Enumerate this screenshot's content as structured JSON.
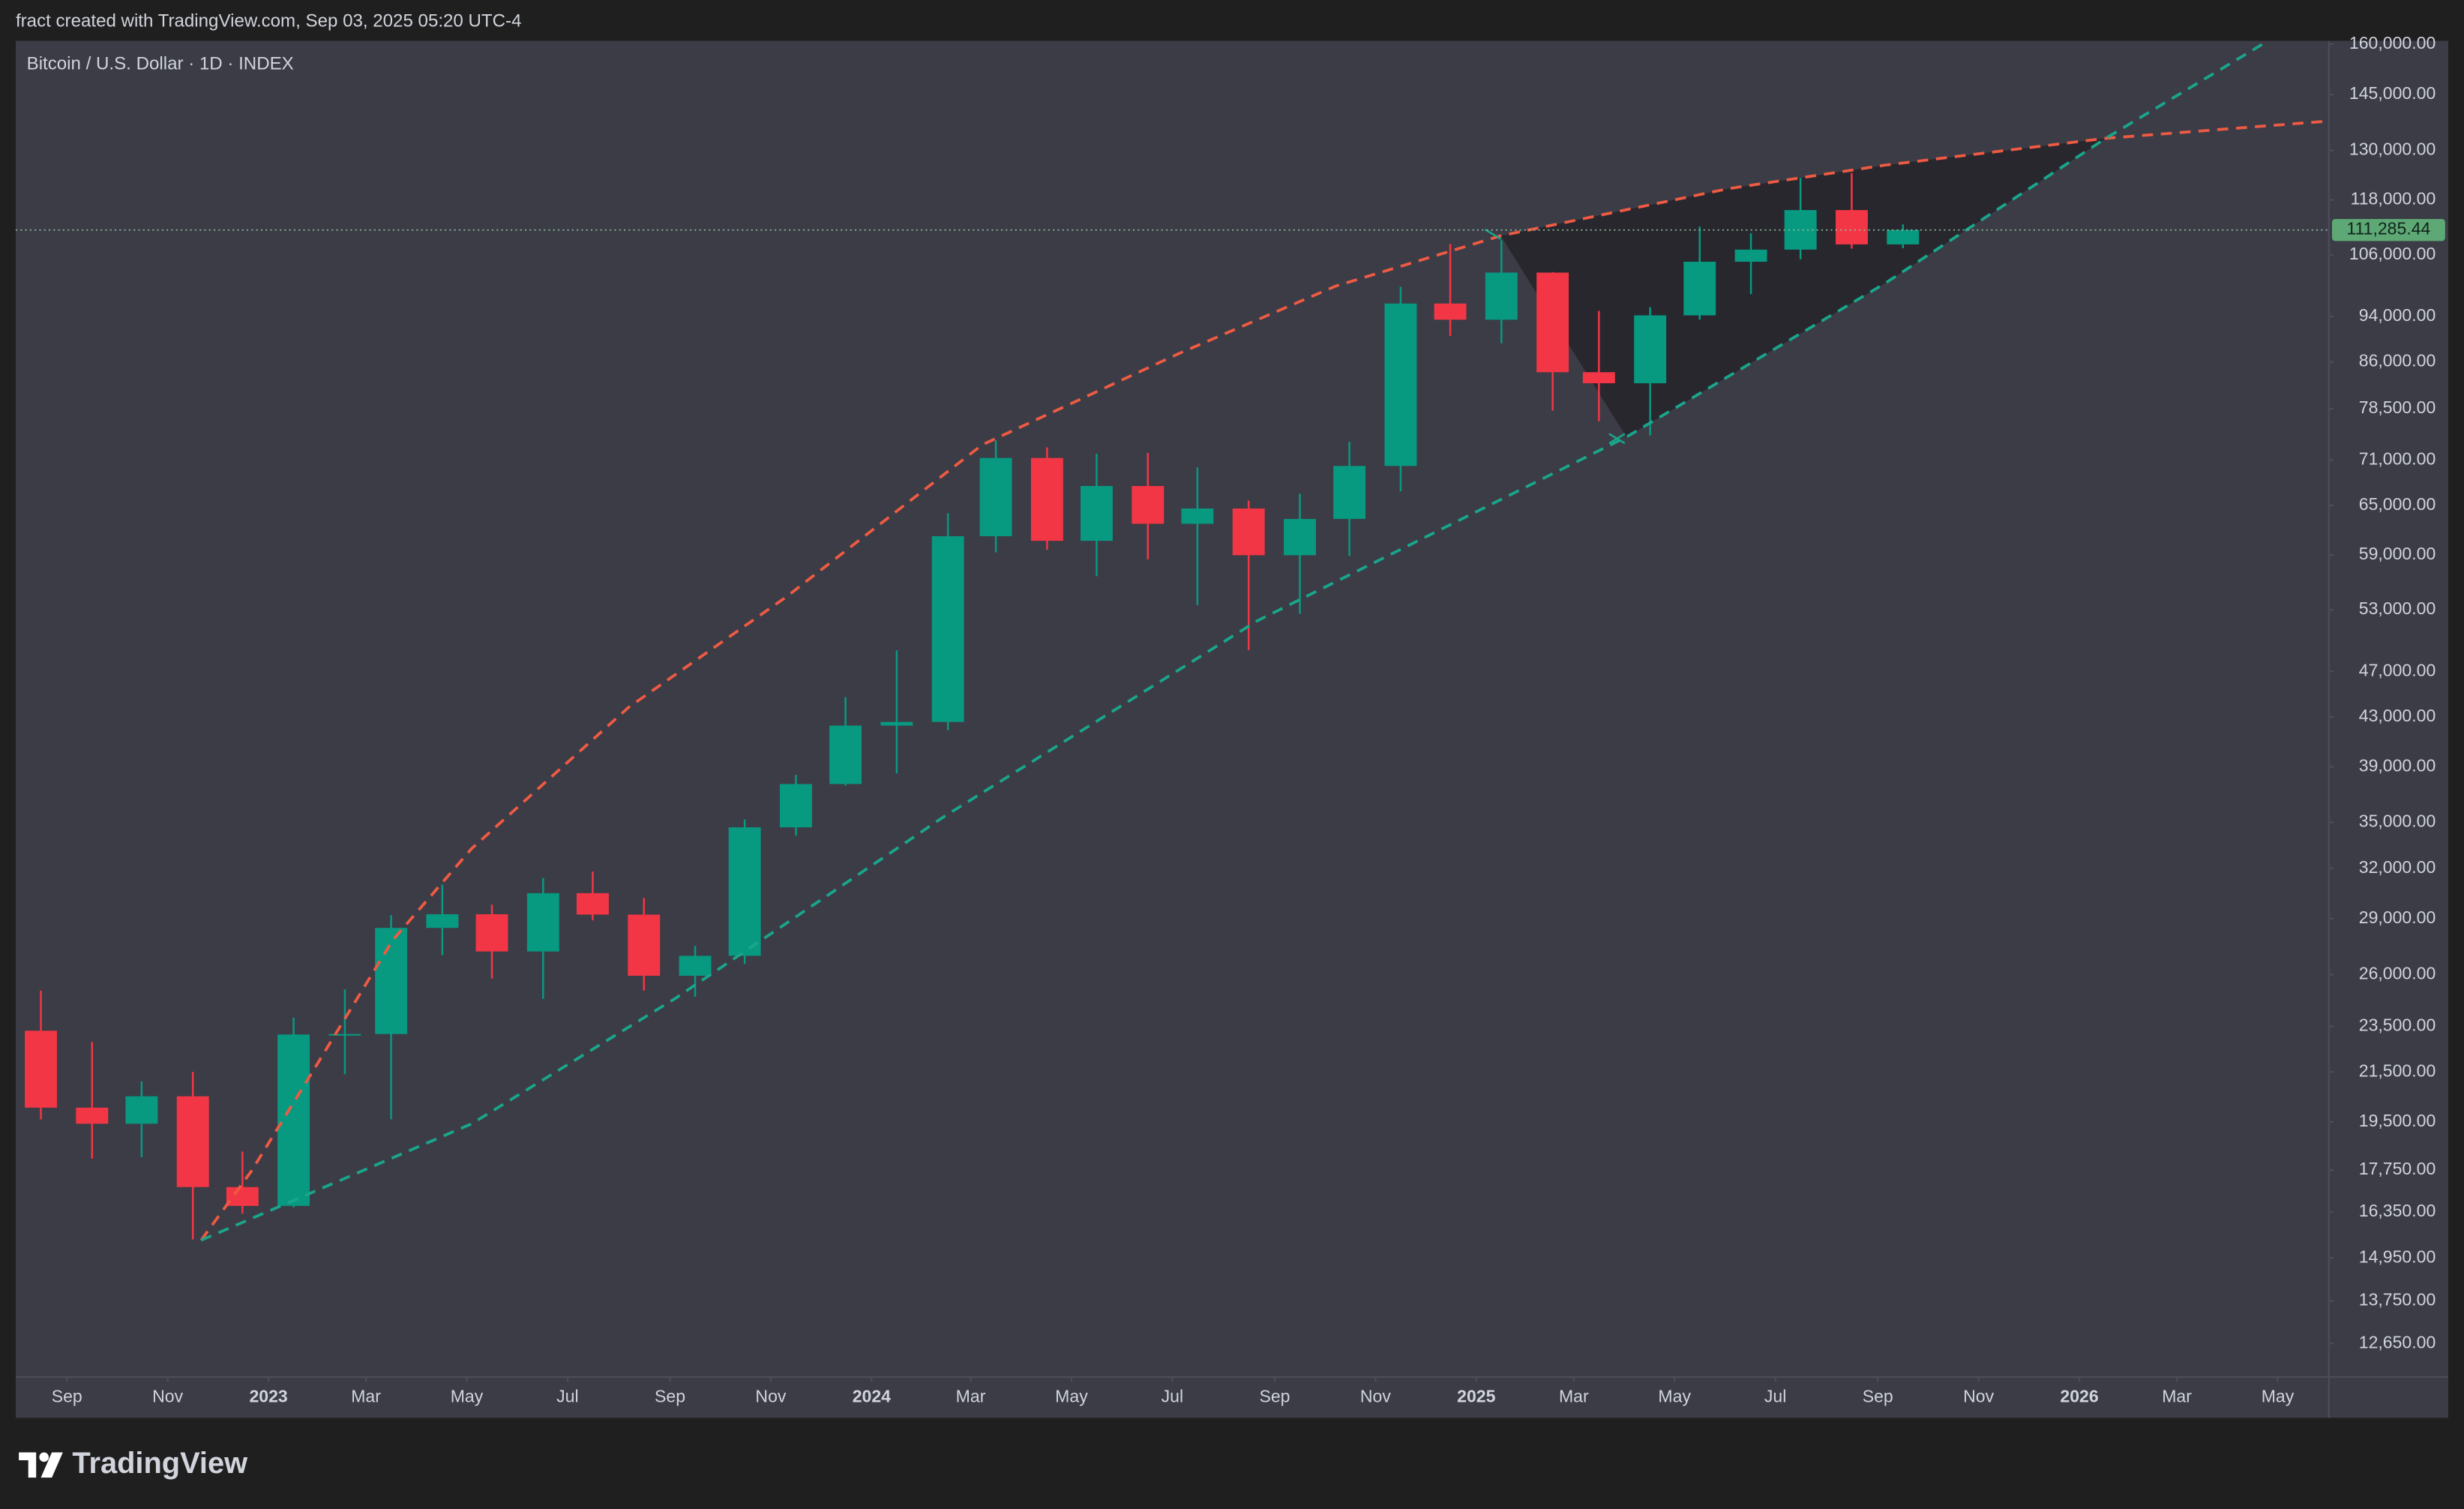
{
  "header": "fract created with TradingView.com, Sep 03, 2025 05:20 UTC-4",
  "brand": "TradingView",
  "chart_data": {
    "type": "candlestick",
    "title": "Bitcoin / U.S. Dollar · 1D · INDEX",
    "log_scale": true,
    "up_color": "#089981",
    "down_color": "#f23645",
    "x": [
      "2022-08",
      "2022-09",
      "2022-10",
      "2022-11",
      "2022-12",
      "2023-01",
      "2023-02",
      "2023-03",
      "2023-04",
      "2023-05",
      "2023-06",
      "2023-07",
      "2023-08",
      "2023-09",
      "2023-10",
      "2023-11",
      "2023-12",
      "2024-01",
      "2024-02",
      "2024-03",
      "2024-04",
      "2024-05",
      "2024-06",
      "2024-07",
      "2024-08",
      "2024-09",
      "2024-10",
      "2024-11",
      "2024-12",
      "2025-01",
      "2025-02",
      "2025-03",
      "2025-04",
      "2025-05",
      "2025-06",
      "2025-07",
      "2025-08",
      "2025-09"
    ],
    "open": [
      23300,
      20050,
      19430,
      20500,
      17170,
      16550,
      23130,
      23150,
      28480,
      29250,
      27200,
      30480,
      29230,
      25940,
      26970,
      34660,
      37720,
      42280,
      42580,
      61200,
      71300,
      60650,
      67500,
      62700,
      64600,
      58970,
      63300,
      70200,
      96400,
      93400,
      102400,
      84300,
      82500,
      94200,
      104600,
      107100,
      115700,
      108200
    ],
    "high": [
      25200,
      22800,
      21100,
      21500,
      18400,
      23900,
      25250,
      29200,
      31000,
      29800,
      31400,
      31800,
      30200,
      27500,
      35200,
      38400,
      44700,
      48970,
      64000,
      73800,
      72800,
      71900,
      72000,
      70000,
      65600,
      66500,
      73600,
      99600,
      108300,
      109100,
      102500,
      95000,
      95700,
      112000,
      110600,
      123200,
      124400,
      112500
    ],
    "low": [
      19600,
      18150,
      18200,
      15500,
      16300,
      16500,
      21400,
      19600,
      27000,
      25800,
      24800,
      28900,
      25200,
      24900,
      26550,
      34100,
      37600,
      38500,
      41900,
      59300,
      59600,
      56600,
      58500,
      53500,
      49000,
      52600,
      58900,
      66800,
      90500,
      89200,
      78200,
      76600,
      74500,
      93400,
      98200,
      105100,
      107300,
      107400
    ],
    "close": [
      20050,
      19430,
      20500,
      17170,
      16550,
      23130,
      23150,
      28480,
      29250,
      27200,
      30480,
      29230,
      25940,
      26970,
      34660,
      37720,
      42280,
      42580,
      61200,
      71300,
      60650,
      67500,
      62700,
      64600,
      58970,
      63300,
      70200,
      96400,
      93400,
      102400,
      84300,
      82500,
      94200,
      104600,
      107100,
      115700,
      108200,
      111285.44
    ],
    "price_line": {
      "value": 111285.44,
      "label": "111,285.44"
    },
    "xlim": [
      "2022-08",
      "2026-06"
    ],
    "xticks": [
      {
        "value": "2022-09",
        "label": "Sep"
      },
      {
        "value": "2022-11",
        "label": "Nov"
      },
      {
        "value": "2023-01",
        "label": "2023"
      },
      {
        "value": "2023-03",
        "label": "Mar"
      },
      {
        "value": "2023-05",
        "label": "May"
      },
      {
        "value": "2023-07",
        "label": "Jul"
      },
      {
        "value": "2023-09",
        "label": "Sep"
      },
      {
        "value": "2023-11",
        "label": "Nov"
      },
      {
        "value": "2024-01",
        "label": "2024"
      },
      {
        "value": "2024-03",
        "label": "Mar"
      },
      {
        "value": "2024-05",
        "label": "May"
      },
      {
        "value": "2024-07",
        "label": "Jul"
      },
      {
        "value": "2024-09",
        "label": "Sep"
      },
      {
        "value": "2024-11",
        "label": "Nov"
      },
      {
        "value": "2025-01",
        "label": "2025"
      },
      {
        "value": "2025-03",
        "label": "Mar"
      },
      {
        "value": "2025-05",
        "label": "May"
      },
      {
        "value": "2025-07",
        "label": "Jul"
      },
      {
        "value": "2025-09",
        "label": "Sep"
      },
      {
        "value": "2025-11",
        "label": "Nov"
      },
      {
        "value": "2026-01",
        "label": "2026"
      },
      {
        "value": "2026-03",
        "label": "Mar"
      },
      {
        "value": "2026-05",
        "label": "May"
      }
    ],
    "ylim": [
      11850,
      161000
    ],
    "yticks": [
      {
        "value": 160000,
        "label": "160,000.00"
      },
      {
        "value": 145000,
        "label": "145,000.00"
      },
      {
        "value": 130000,
        "label": "130,000.00"
      },
      {
        "value": 118000,
        "label": "118,000.00"
      },
      {
        "value": 106000,
        "label": "106,000.00"
      },
      {
        "value": 94000,
        "label": "94,000.00"
      },
      {
        "value": 86000,
        "label": "86,000.00"
      },
      {
        "value": 78500,
        "label": "78,500.00"
      },
      {
        "value": 71000,
        "label": "71,000.00"
      },
      {
        "value": 65000,
        "label": "65,000.00"
      },
      {
        "value": 59000,
        "label": "59,000.00"
      },
      {
        "value": 53000,
        "label": "53,000.00"
      },
      {
        "value": 47000,
        "label": "47,000.00"
      },
      {
        "value": 43000,
        "label": "43,000.00"
      },
      {
        "value": 39000,
        "label": "39,000.00"
      },
      {
        "value": 35000,
        "label": "35,000.00"
      },
      {
        "value": 32000,
        "label": "32,000.00"
      },
      {
        "value": 29000,
        "label": "29,000.00"
      },
      {
        "value": 26000,
        "label": "26,000.00"
      },
      {
        "value": 23500,
        "label": "23,500.00"
      },
      {
        "value": 21500,
        "label": "21,500.00"
      },
      {
        "value": 19500,
        "label": "19,500.00"
      },
      {
        "value": 17750,
        "label": "17,750.00"
      },
      {
        "value": 16350,
        "label": "16,350.00"
      },
      {
        "value": 14950,
        "label": "14,950.00"
      },
      {
        "value": 13750,
        "label": "13,750.00"
      },
      {
        "value": 12650,
        "label": "12,650.00"
      }
    ]
  }
}
